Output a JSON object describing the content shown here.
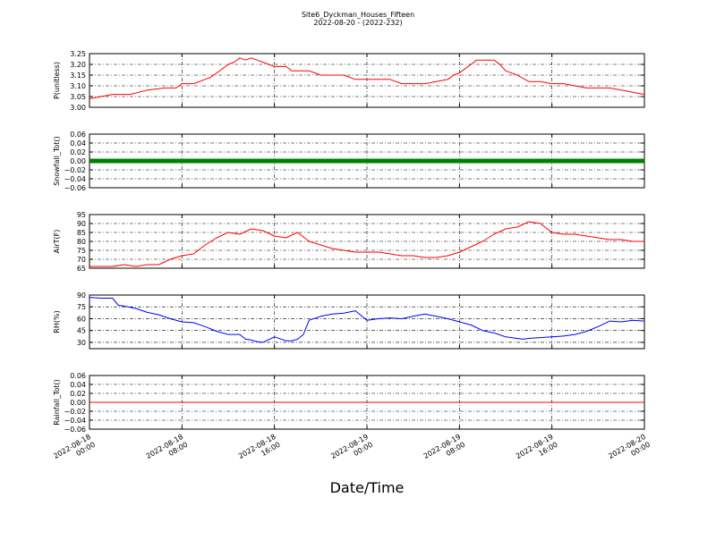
{
  "figure": {
    "title": "Site6_Dyckman_Houses_Fifteen",
    "subtitle": "2022-08-20 - (2022-232)",
    "xlabel": "Date/Time"
  },
  "chart_data": [
    {
      "type": "line",
      "ylabel": "P(unitless)",
      "ylim": [
        3.0,
        3.25
      ],
      "yticks": [
        "3.00",
        "3.05",
        "3.10",
        "3.15",
        "3.20",
        "3.25"
      ],
      "color": "#ff0000",
      "grid": true,
      "x_hours": [
        0,
        2,
        3.5,
        5,
        6.5,
        7.5,
        8,
        9,
        10,
        10.5,
        11,
        12,
        12.5,
        13,
        13.5,
        14,
        14.5,
        15,
        15.5,
        16,
        17,
        17.5,
        18,
        18.5,
        19,
        19.5,
        20,
        21,
        22,
        23,
        23.5,
        24,
        25,
        26,
        27,
        27.5,
        28,
        29,
        30,
        31,
        31.5,
        32,
        32.5,
        33,
        33.5,
        34,
        34.5,
        35,
        35.5,
        36,
        37,
        38,
        39,
        40,
        41,
        42,
        43,
        44,
        45,
        46,
        47,
        48
      ],
      "values": [
        3.04,
        3.06,
        3.06,
        3.08,
        3.09,
        3.09,
        3.11,
        3.11,
        3.13,
        3.14,
        3.16,
        3.2,
        3.21,
        3.23,
        3.22,
        3.23,
        3.22,
        3.21,
        3.2,
        3.19,
        3.19,
        3.17,
        3.17,
        3.17,
        3.17,
        3.16,
        3.15,
        3.15,
        3.15,
        3.13,
        3.13,
        3.13,
        3.13,
        3.13,
        3.11,
        3.11,
        3.11,
        3.11,
        3.12,
        3.13,
        3.15,
        3.16,
        3.18,
        3.2,
        3.22,
        3.22,
        3.22,
        3.22,
        3.2,
        3.17,
        3.15,
        3.12,
        3.12,
        3.11,
        3.11,
        3.1,
        3.09,
        3.09,
        3.09,
        3.08,
        3.07,
        3.06
      ]
    },
    {
      "type": "scatter",
      "ylabel": "Snowfall_Tot()",
      "ylim": [
        -0.06,
        0.06
      ],
      "yticks": [
        "0.06",
        "0.04",
        "0.02",
        "0.00",
        "−0.02",
        "−0.04",
        "−0.06"
      ],
      "color": "#008000",
      "grid": true,
      "x_hours": [
        0,
        48
      ],
      "values": [
        0.0,
        0.0
      ]
    },
    {
      "type": "line",
      "ylabel": "AirT(F)",
      "ylim": [
        65,
        95
      ],
      "yticks": [
        "65",
        "70",
        "75",
        "80",
        "85",
        "90",
        "95"
      ],
      "color": "#ff0000",
      "grid": true,
      "x_hours": [
        0,
        2,
        3,
        4,
        5,
        6,
        7,
        8,
        9,
        10,
        11,
        12,
        13,
        14,
        15,
        16,
        17,
        18,
        19,
        20,
        21,
        22,
        23,
        24,
        25,
        26,
        27,
        28,
        29,
        30,
        31,
        32,
        33,
        34,
        35,
        36,
        37,
        38,
        39,
        40,
        41,
        42,
        43,
        44,
        45,
        46,
        47,
        48
      ],
      "values": [
        66,
        66,
        67,
        66,
        67,
        67,
        70,
        72,
        73,
        78,
        82,
        85,
        84,
        87,
        86,
        83,
        82,
        85,
        80,
        78,
        76,
        75,
        74,
        74,
        74,
        73,
        72,
        72,
        71,
        71,
        72,
        74,
        77,
        80,
        84,
        87,
        88,
        91,
        90,
        85,
        84,
        84,
        83,
        82,
        81,
        81,
        80,
        80
      ]
    },
    {
      "type": "line",
      "ylabel": "RH(%)",
      "ylim": [
        22,
        90
      ],
      "yticks": [
        "30",
        "45",
        "60",
        "75",
        "90"
      ],
      "color": "#0000ff",
      "grid": true,
      "x_hours": [
        0,
        1,
        2,
        2.5,
        3,
        4,
        5,
        6,
        7,
        8,
        9,
        10,
        11,
        12,
        13,
        13.5,
        14,
        14.5,
        15,
        16,
        17,
        17.5,
        18,
        18.5,
        19,
        20,
        21,
        22,
        23,
        24,
        25,
        26,
        27,
        28,
        29,
        30,
        31,
        32,
        33,
        34,
        35,
        36,
        37,
        37.5,
        38,
        39,
        40,
        41,
        42,
        43,
        44,
        45,
        46,
        47,
        48
      ],
      "values": [
        87,
        86,
        86,
        77,
        76,
        73,
        68,
        65,
        60,
        56,
        55,
        50,
        44,
        40,
        40,
        34,
        33,
        31,
        30,
        37,
        32,
        32,
        34,
        40,
        58,
        63,
        66,
        67,
        70,
        58,
        60,
        61,
        60,
        63,
        66,
        63,
        60,
        56,
        52,
        45,
        42,
        37,
        35,
        34,
        35,
        36,
        37,
        38,
        40,
        44,
        50,
        57,
        56,
        58,
        57
      ]
    },
    {
      "type": "line",
      "ylabel": "Rainfall_Tot()",
      "ylim": [
        -0.06,
        0.06
      ],
      "yticks": [
        "0.06",
        "0.04",
        "0.02",
        "0.00",
        "−0.02",
        "−0.04",
        "−0.06"
      ],
      "color": "#ff0000",
      "grid": true,
      "x_hours": [
        0,
        48
      ],
      "values": [
        0.0,
        0.0
      ]
    }
  ],
  "x_axis": {
    "xlim_hours": [
      0,
      48
    ],
    "tick_hours": [
      0,
      8,
      16,
      24,
      32,
      40,
      48
    ],
    "tick_labels": [
      [
        "2022-08-18",
        "00:00"
      ],
      [
        "2022-08-18",
        "08:00"
      ],
      [
        "2022-08-18",
        "16:00"
      ],
      [
        "2022-08-19",
        "00:00"
      ],
      [
        "2022-08-19",
        "08:00"
      ],
      [
        "2022-08-19",
        "16:00"
      ],
      [
        "2022-08-20",
        "00:00"
      ]
    ]
  }
}
